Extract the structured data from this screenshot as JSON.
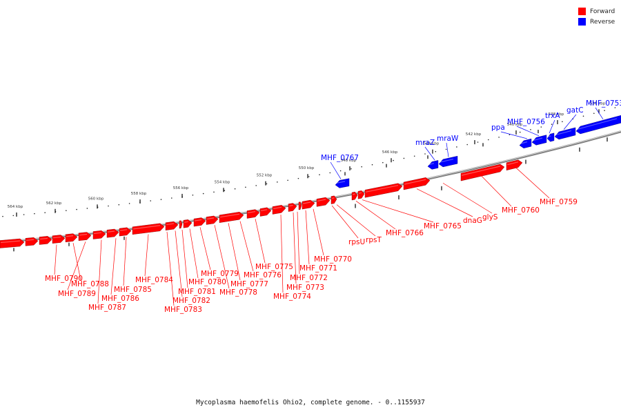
{
  "legend": {
    "forward": {
      "label": "Forward",
      "color": "#ff0000"
    },
    "reverse": {
      "label": "Reverse",
      "color": "#0000ff"
    }
  },
  "caption": "Mycoplasma haemofelis Ohio2, complete genome. - 0..1155937",
  "colors": {
    "forward": "#ff0000",
    "reverse": "#0000ff",
    "backbone": "#808080",
    "tick": "#000000"
  },
  "tick_labels": [
    "564 kbp",
    "562 kbp",
    "560 kbp",
    "558 kbp",
    "556 kbp",
    "554 kbp",
    "552 kbp",
    "550 kbp",
    "548 kbp",
    "546 kbp",
    "544 kbp",
    "542 kbp",
    "540 kbp",
    "538 kbp",
    "536 kbp"
  ],
  "forward_genes": [
    "MHF_0790",
    "MHF_0788",
    "MHF_0789",
    "MHF_0787",
    "MHF_0786",
    "MHF_0785",
    "MHF_0784",
    "MHF_0783",
    "MHF_0782",
    "MHF_0781",
    "MHF_0780",
    "MHF_0779",
    "MHF_0778",
    "MHF_0777",
    "MHF_0776",
    "MHF_0775",
    "MHF_0774",
    "MHF_0773",
    "MHF_0772",
    "MHF_0771",
    "MHF_0770",
    "rpsU",
    "rpsT",
    "MHF_0766",
    "MHF_0765",
    "dnaG",
    "glyS",
    "MHF_0760",
    "MHF_0759"
  ],
  "reverse_genes": [
    "MHF_0767",
    "mraZ",
    "mraW",
    "ppa",
    "MHF_0756",
    "trxA",
    "gatC",
    "MHF_0753"
  ]
}
